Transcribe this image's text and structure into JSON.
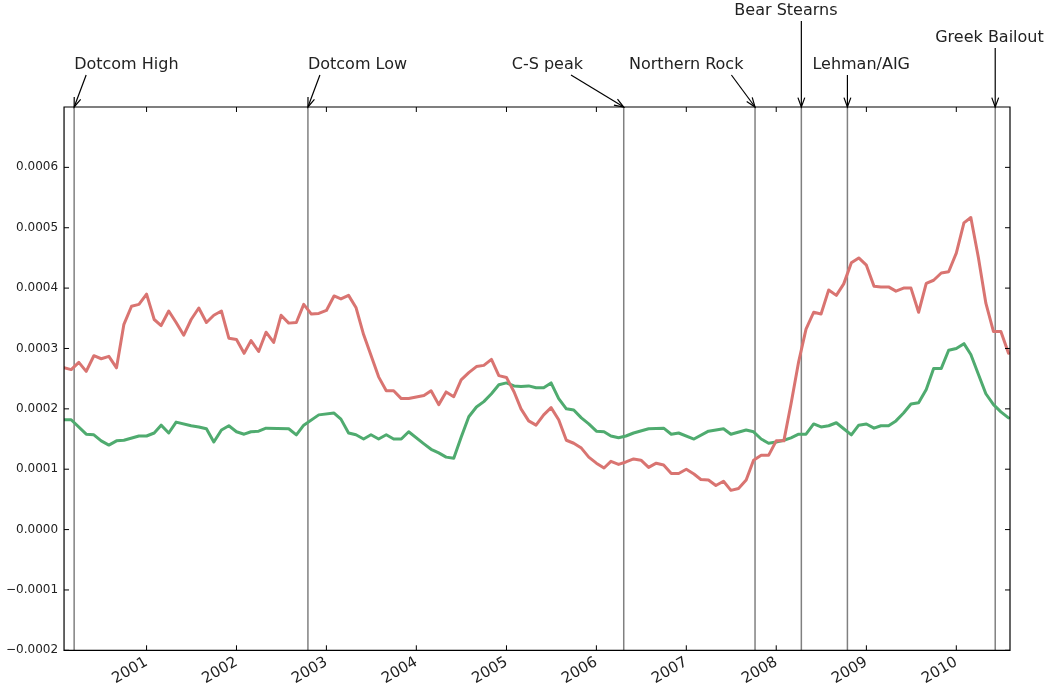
{
  "chart_data": {
    "type": "line",
    "grid": false,
    "legend": false,
    "marker": "none",
    "line_style": "solid",
    "xlim": [
      "2000-02-01",
      "2010-08-07"
    ],
    "xticks": [
      "2001",
      "2002",
      "2003",
      "2004",
      "2005",
      "2006",
      "2007",
      "2008",
      "2009",
      "2010"
    ],
    "ylim": [
      -0.0002,
      0.0007
    ],
    "yticks": [
      {
        "value": -0.0002,
        "label": "−0.0002"
      },
      {
        "value": -0.0001,
        "label": "−0.0001"
      },
      {
        "value": 0,
        "label": "0.0000"
      },
      {
        "value": 0.0001,
        "label": "0.0001"
      },
      {
        "value": 0.0002,
        "label": "0.0002"
      },
      {
        "value": 0.0003,
        "label": "0.0003"
      },
      {
        "value": 0.0004,
        "label": "0.0004"
      },
      {
        "value": 0.0005,
        "label": "0.0005"
      },
      {
        "value": 0.0006,
        "label": "0.0006"
      }
    ],
    "series": [
      {
        "color": "#d97471",
        "x": [
          "2000-02",
          "2000-03",
          "2000-04",
          "2000-05",
          "2000-06",
          "2000-07",
          "2000-08",
          "2000-09",
          "2000-10",
          "2000-11",
          "2000-12",
          "2001-01",
          "2001-02",
          "2001-03",
          "2001-04",
          "2001-05",
          "2001-06",
          "2001-07",
          "2001-08",
          "2001-09",
          "2001-10",
          "2001-11",
          "2001-12",
          "2002-01",
          "2002-02",
          "2002-03",
          "2002-04",
          "2002-05",
          "2002-06",
          "2002-07",
          "2002-08",
          "2002-09",
          "2002-10",
          "2002-11",
          "2002-12",
          "2003-01",
          "2003-02",
          "2003-03",
          "2003-04",
          "2003-05",
          "2003-06",
          "2003-08",
          "2003-09",
          "2003-10",
          "2003-11",
          "2003-12",
          "2004-02",
          "2004-03",
          "2004-04",
          "2004-05",
          "2004-06",
          "2004-07",
          "2004-08",
          "2004-09",
          "2004-10",
          "2004-11",
          "2004-12",
          "2005-01",
          "2005-02",
          "2005-03",
          "2005-04",
          "2005-05",
          "2005-06",
          "2005-07",
          "2005-08",
          "2005-09",
          "2005-10",
          "2005-11",
          "2005-12",
          "2006-01",
          "2006-02",
          "2006-03",
          "2006-04",
          "2006-05",
          "2006-06",
          "2006-07",
          "2006-08",
          "2006-09",
          "2006-10",
          "2006-11",
          "2006-12",
          "2007-01",
          "2007-02",
          "2007-03",
          "2007-04",
          "2007-05",
          "2007-06",
          "2007-07",
          "2007-08",
          "2007-09",
          "2007-10",
          "2007-11",
          "2007-12",
          "2008-01",
          "2008-02",
          "2008-03",
          "2008-04",
          "2008-05",
          "2008-06",
          "2008-07",
          "2008-08",
          "2008-09",
          "2008-10",
          "2008-11",
          "2008-12",
          "2009-01",
          "2009-02",
          "2009-03",
          "2009-04",
          "2009-05",
          "2009-06",
          "2009-07",
          "2009-08",
          "2009-09",
          "2009-10",
          "2009-11",
          "2009-12",
          "2010-01",
          "2010-02",
          "2010-03",
          "2010-04",
          "2010-05",
          "2010-06",
          "2010-07",
          "2010-08"
        ],
        "values": [
          0.000268,
          0.000265,
          0.000277,
          0.000262,
          0.000288,
          0.000283,
          0.000287,
          0.000268,
          0.00034,
          0.00037,
          0.000373,
          0.00039,
          0.000348,
          0.000338,
          0.000362,
          0.000343,
          0.000322,
          0.000348,
          0.000367,
          0.000343,
          0.000355,
          0.000362,
          0.000317,
          0.000315,
          0.000292,
          0.000313,
          0.000295,
          0.000327,
          0.00031,
          0.000355,
          0.000342,
          0.000343,
          0.000373,
          0.000357,
          0.000358,
          0.000363,
          0.000387,
          0.000382,
          0.000388,
          0.000368,
          0.000323,
          0.000253,
          0.00023,
          0.00023,
          0.000217,
          0.000217,
          0.000222,
          0.00023,
          0.000207,
          0.000228,
          0.00022,
          0.000248,
          0.00026,
          0.00027,
          0.000272,
          0.000282,
          0.000255,
          0.000252,
          0.000228,
          0.0002,
          0.00018,
          0.000173,
          0.00019,
          0.000202,
          0.000182,
          0.000148,
          0.000143,
          0.000135,
          0.00012,
          0.00011,
          0.000102,
          0.000113,
          0.000108,
          0.000112,
          0.000117,
          0.000115,
          0.000103,
          0.00011,
          0.000107,
          9.3e-05,
          9.3e-05,
          0.0001,
          9.2e-05,
          8.3e-05,
          8.2e-05,
          7.3e-05,
          8e-05,
          6.5e-05,
          6.8e-05,
          8.2e-05,
          0.000115,
          0.000123,
          0.000123,
          0.000147,
          0.000147,
          0.000208,
          0.000278,
          0.000332,
          0.00036,
          0.000357,
          0.000397,
          0.000388,
          0.000407,
          0.000442,
          0.00045,
          0.000438,
          0.000403,
          0.000402,
          0.000402,
          0.000395,
          0.0004,
          0.0004,
          0.00036,
          0.000408,
          0.000413,
          0.000425,
          0.000427,
          0.000458,
          0.000508,
          0.000517,
          0.00045,
          0.000375,
          0.000328,
          0.000328,
          0.000292
        ]
      },
      {
        "color": "#4fab6f",
        "x": [
          "2000-02",
          "2000-03",
          "2000-05",
          "2000-06",
          "2000-07",
          "2000-08",
          "2000-09",
          "2000-10",
          "2000-12",
          "2001-01",
          "2001-02",
          "2001-03",
          "2001-04",
          "2001-05",
          "2001-07",
          "2001-08",
          "2001-09",
          "2001-10",
          "2001-11",
          "2001-12",
          "2002-01",
          "2002-02",
          "2002-03",
          "2002-04",
          "2002-05",
          "2002-08",
          "2002-09",
          "2002-10",
          "2002-12",
          "2003-02",
          "2003-03",
          "2003-04",
          "2003-05",
          "2003-06",
          "2003-07",
          "2003-08",
          "2003-09",
          "2003-10",
          "2003-11",
          "2003-12",
          "2004-02",
          "2004-03",
          "2004-04",
          "2004-05",
          "2004-06",
          "2004-07",
          "2004-08",
          "2004-09",
          "2004-10",
          "2004-11",
          "2004-12",
          "2005-01",
          "2005-02",
          "2005-03",
          "2005-04",
          "2005-05",
          "2005-06",
          "2005-07",
          "2005-08",
          "2005-09",
          "2005-10",
          "2005-11",
          "2005-12",
          "2006-01",
          "2006-02",
          "2006-03",
          "2006-04",
          "2006-05",
          "2006-06",
          "2006-08",
          "2006-10",
          "2006-11",
          "2006-12",
          "2007-02",
          "2007-04",
          "2007-06",
          "2007-07",
          "2007-09",
          "2007-10",
          "2007-11",
          "2007-12",
          "2008-01",
          "2008-02",
          "2008-03",
          "2008-04",
          "2008-05",
          "2008-06",
          "2008-07",
          "2008-08",
          "2008-09",
          "2008-10",
          "2008-11",
          "2008-12",
          "2009-01",
          "2009-02",
          "2009-03",
          "2009-04",
          "2009-05",
          "2009-06",
          "2009-07",
          "2009-08",
          "2009-09",
          "2009-10",
          "2009-11",
          "2009-12",
          "2010-01",
          "2010-02",
          "2010-03",
          "2010-04",
          "2010-05",
          "2010-06",
          "2010-07",
          "2010-08"
        ],
        "values": [
          0.000182,
          0.000182,
          0.000158,
          0.000157,
          0.000147,
          0.00014,
          0.000147,
          0.000148,
          0.000155,
          0.000155,
          0.00016,
          0.000173,
          0.00016,
          0.000178,
          0.000172,
          0.00017,
          0.000167,
          0.000145,
          0.000165,
          0.000172,
          0.000162,
          0.000158,
          0.000162,
          0.000163,
          0.000168,
          0.000167,
          0.000157,
          0.000173,
          0.00019,
          0.000193,
          0.000183,
          0.00016,
          0.000157,
          0.00015,
          0.000157,
          0.00015,
          0.000157,
          0.00015,
          0.00015,
          0.000162,
          0.000142,
          0.000133,
          0.000127,
          0.00012,
          0.000118,
          0.000153,
          0.000187,
          0.000203,
          0.000212,
          0.000225,
          0.00024,
          0.000243,
          0.000238,
          0.000237,
          0.000238,
          0.000235,
          0.000235,
          0.000243,
          0.000217,
          0.0002,
          0.000198,
          0.000185,
          0.000175,
          0.000163,
          0.000162,
          0.000155,
          0.000152,
          0.000155,
          0.00016,
          0.000167,
          0.000168,
          0.000158,
          0.00016,
          0.00015,
          0.000163,
          0.000167,
          0.000158,
          0.000165,
          0.000162,
          0.00015,
          0.000143,
          0.000145,
          0.000148,
          0.000152,
          0.000158,
          0.000158,
          0.000175,
          0.00017,
          0.000172,
          0.000177,
          0.000167,
          0.000157,
          0.000173,
          0.000175,
          0.000168,
          0.000172,
          0.000172,
          0.00018,
          0.000193,
          0.000208,
          0.00021,
          0.000232,
          0.000267,
          0.000267,
          0.000297,
          0.0003,
          0.000308,
          0.00029,
          0.000257,
          0.000225,
          0.000207,
          0.000195,
          0.000185
        ]
      }
    ],
    "ref_lines": [
      {
        "axis": "x",
        "value": "2000-03-13",
        "label": "Dotcom High",
        "color": "#808080"
      },
      {
        "axis": "x",
        "value": "2002-10-18",
        "label": "Dotcom Low",
        "color": "#808080"
      },
      {
        "axis": "x",
        "value": "2006-04-22",
        "label": "C-S peak",
        "color": "#808080"
      },
      {
        "axis": "x",
        "value": "2007-10-07",
        "label": "Northern Rock",
        "color": "#808080"
      },
      {
        "axis": "x",
        "value": "2008-04-12",
        "label": "Bear Stearns",
        "color": "#808080"
      },
      {
        "axis": "x",
        "value": "2008-10-16",
        "label": "Lehman/AIG",
        "color": "#808080"
      },
      {
        "axis": "x",
        "value": "2010-06-08",
        "label": "Greek Bailout",
        "color": "#808080"
      }
    ]
  }
}
